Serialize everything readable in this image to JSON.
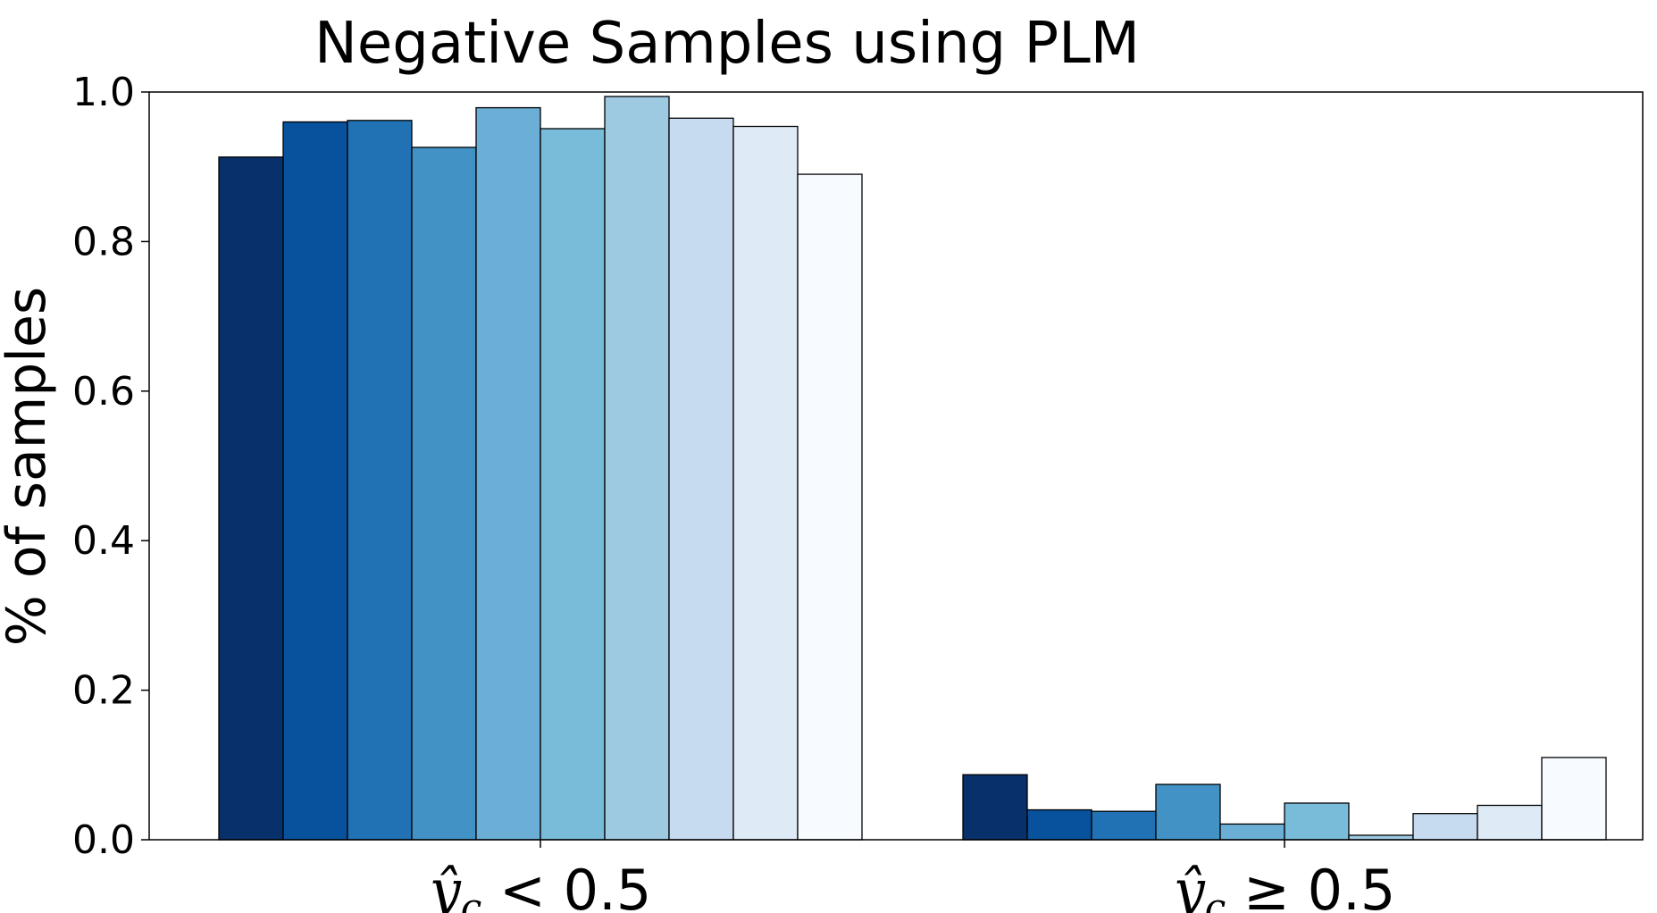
{
  "chart_data": {
    "type": "bar",
    "title": "Negative Samples using PLM",
    "ylabel": "% of samples",
    "xlabel": "",
    "ylim": [
      0,
      1.0
    ],
    "yticks": [
      "0.0",
      "0.2",
      "0.4",
      "0.6",
      "0.8",
      "1.0"
    ],
    "grid": false,
    "categories": [
      {
        "var": "ŷ",
        "sub": "c",
        "rest": " < 0.5"
      },
      {
        "var": "ŷ",
        "sub": "c",
        "rest": " ≥ 0.5"
      }
    ],
    "series": [
      {
        "color": "#08306b",
        "values": [
          0.913,
          0.087
        ]
      },
      {
        "color": "#08519c",
        "values": [
          0.96,
          0.04
        ]
      },
      {
        "color": "#2171b5",
        "values": [
          0.962,
          0.038
        ]
      },
      {
        "color": "#4292c6",
        "values": [
          0.926,
          0.074
        ]
      },
      {
        "color": "#6baed6",
        "values": [
          0.979,
          0.021
        ]
      },
      {
        "color": "#78bcda",
        "values": [
          0.951,
          0.049
        ]
      },
      {
        "color": "#9ecae1",
        "values": [
          0.994,
          0.006
        ]
      },
      {
        "color": "#c6dbef",
        "values": [
          0.965,
          0.035
        ]
      },
      {
        "color": "#deebf7",
        "values": [
          0.954,
          0.046
        ]
      },
      {
        "color": "#f7fbff",
        "values": [
          0.89,
          0.11
        ]
      }
    ]
  }
}
